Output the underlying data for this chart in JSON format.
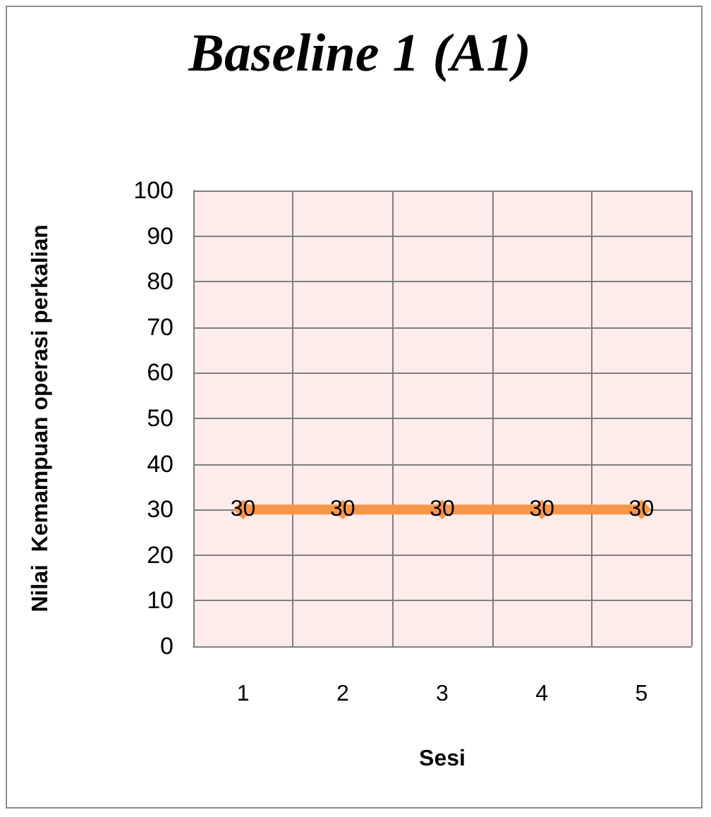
{
  "chart_data": {
    "type": "line",
    "title": "Baseline 1 (A1)",
    "xlabel": "Sesi",
    "ylabel": "Nilai  Kemampuan operasi perkalian",
    "categories": [
      "1",
      "2",
      "3",
      "4",
      "5"
    ],
    "series": [
      {
        "color": "#f79646",
        "values": [
          30,
          30,
          30,
          30,
          30
        ]
      }
    ],
    "ylim": [
      0,
      100
    ],
    "yticks": [
      0,
      10,
      20,
      30,
      40,
      50,
      60,
      70,
      80,
      90,
      100
    ],
    "grid": true,
    "marker": "diamond",
    "line_style": "solid",
    "data_labels": true
  }
}
